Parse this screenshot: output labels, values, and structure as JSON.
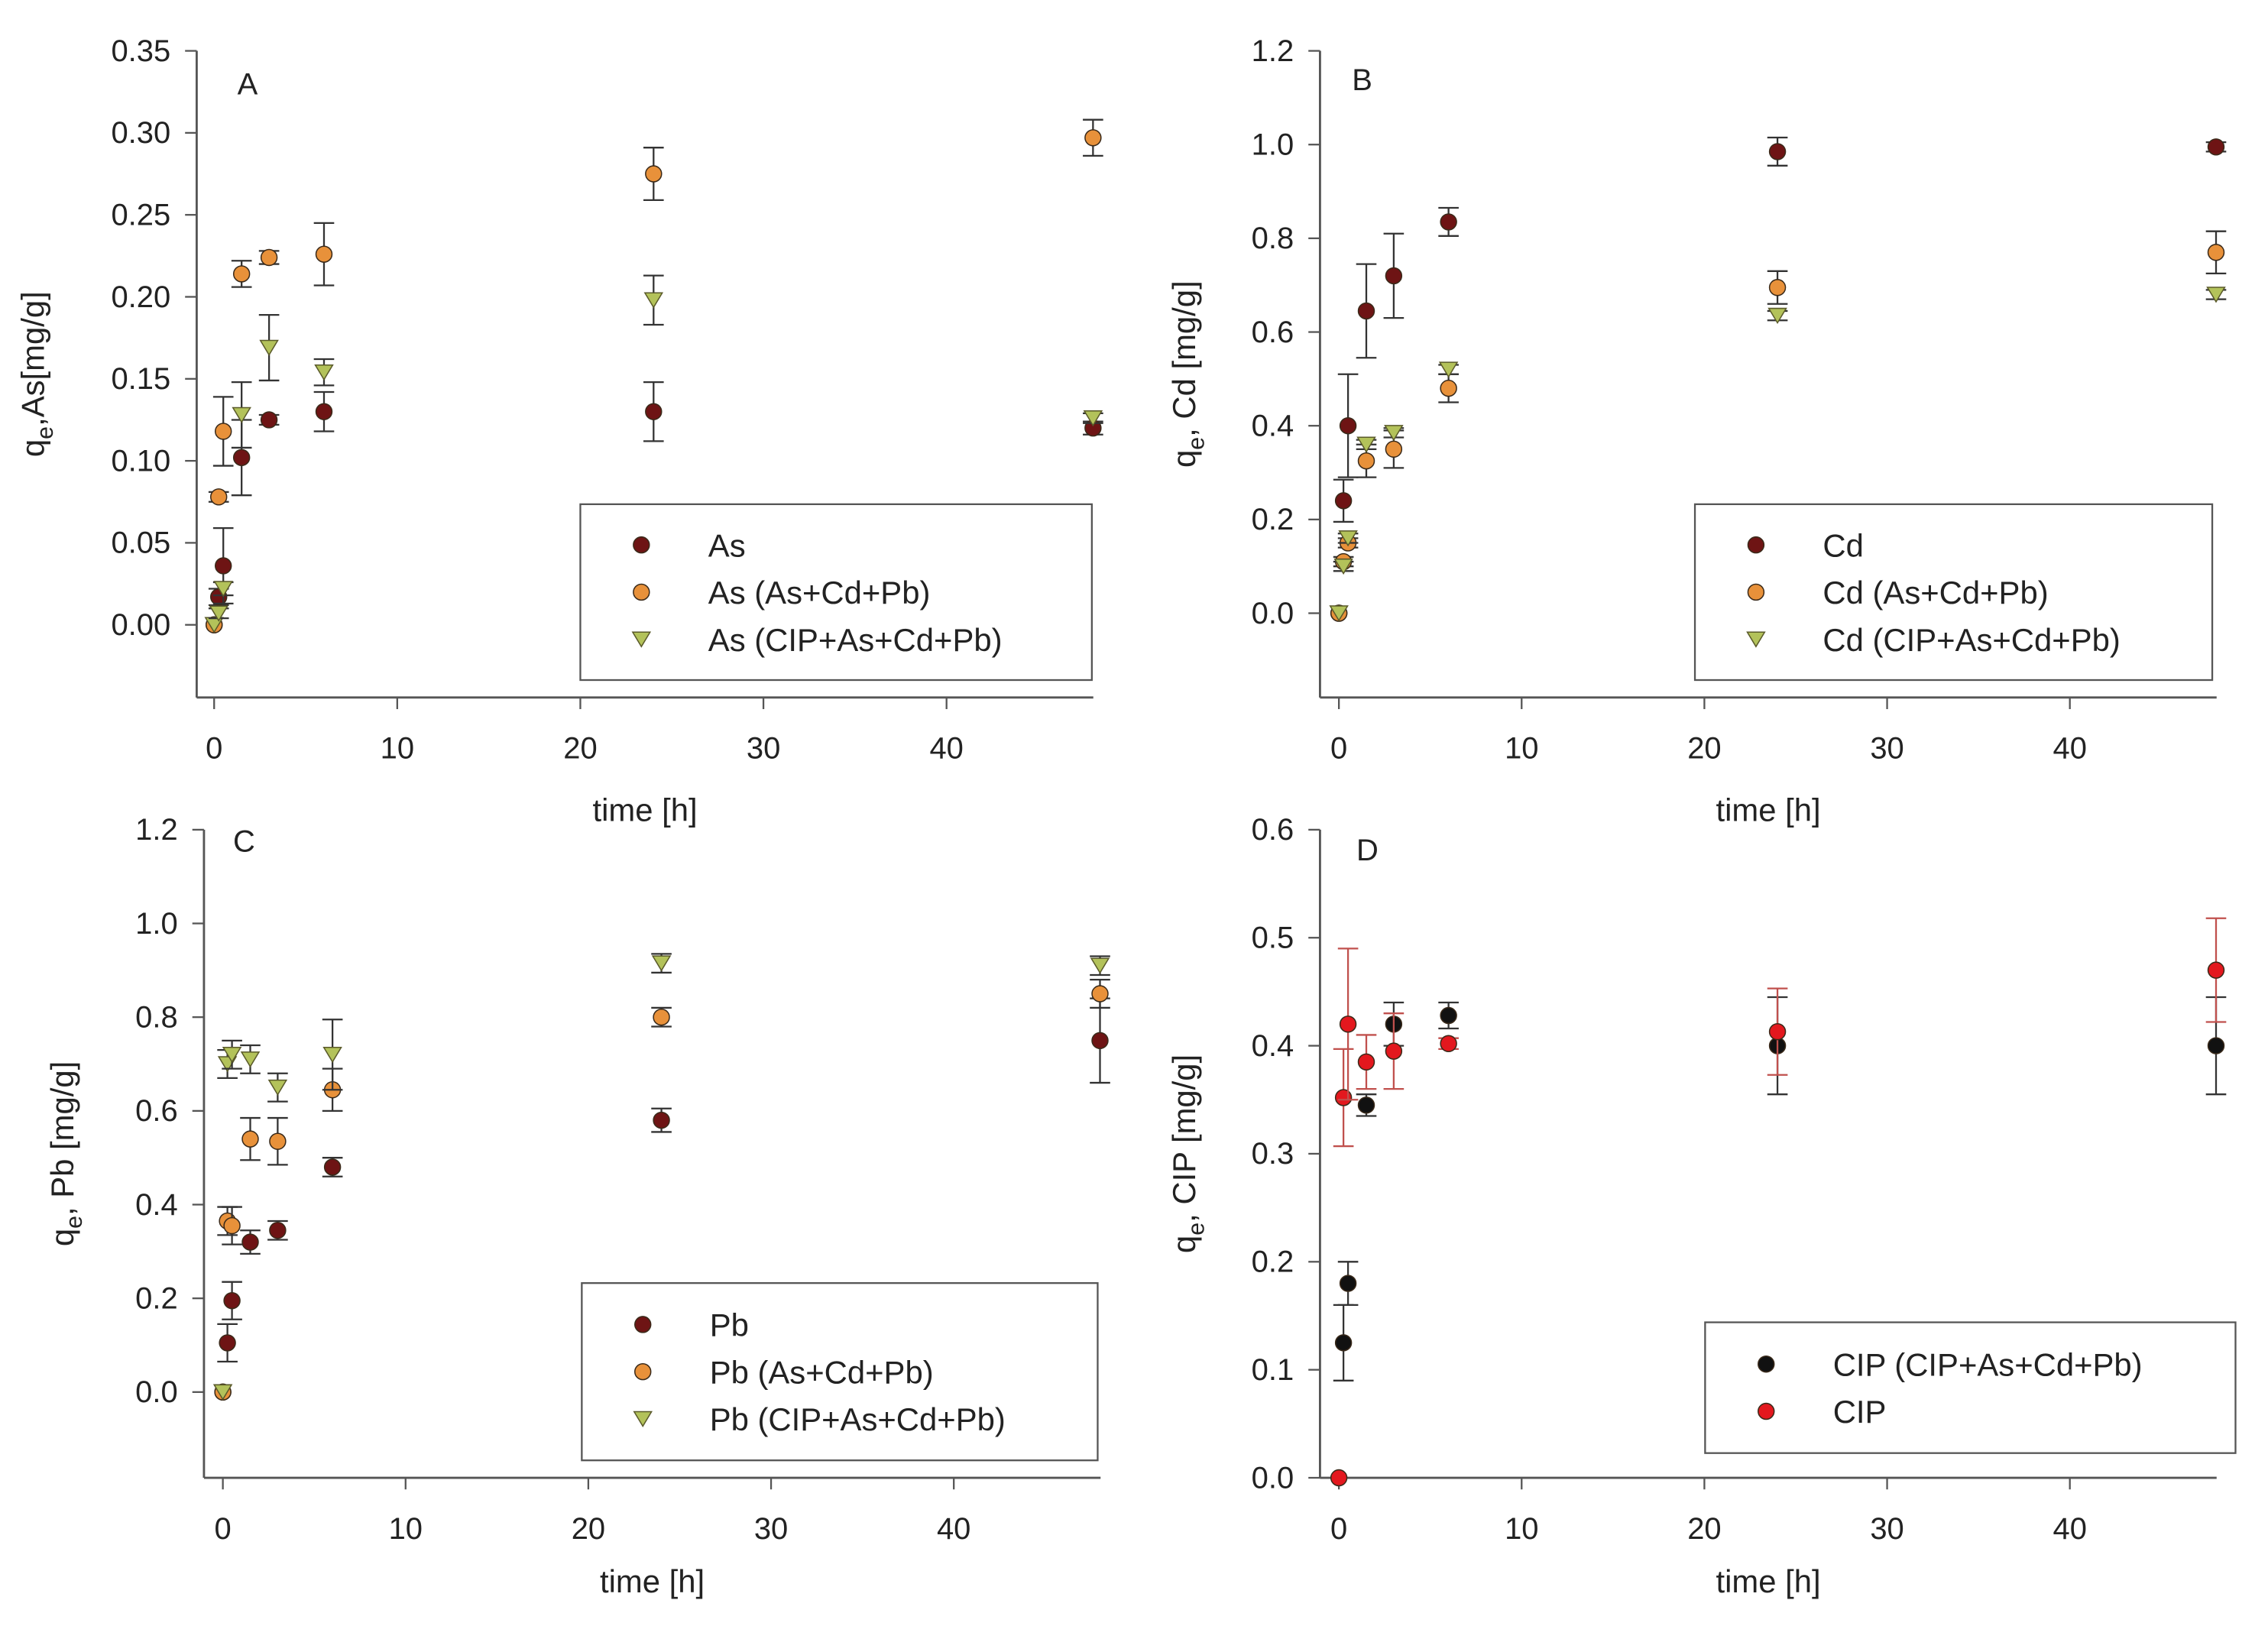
{
  "chart_data": [
    {
      "type": "scatter",
      "panel_label": "A",
      "xlabel": "time [h]",
      "ylabel_main": "q",
      "ylabel_sub": "e",
      "ylabel_rest": ",As[mg/g]",
      "xlim": [
        -1,
        48
      ],
      "ylim": [
        -0.045,
        0.35
      ],
      "xticks": [
        0,
        10,
        20,
        30,
        40
      ],
      "yticks": [
        0,
        0.05,
        0.1,
        0.15,
        0.2,
        0.25,
        0.3,
        0.35
      ],
      "ytick_decimals": 2,
      "legend_position": "bottom-right",
      "x": [
        0,
        0.25,
        0.5,
        1.5,
        3,
        6,
        24,
        48
      ],
      "series": [
        {
          "name": "As",
          "marker": "circle",
          "color": "#6e1414",
          "values": [
            0,
            0.017,
            0.036,
            0.102,
            0.125,
            0.13,
            0.13,
            0.12
          ],
          "errors": [
            0,
            0.005,
            0.023,
            0.023,
            0.003,
            0.012,
            0.018,
            0.004
          ]
        },
        {
          "name": "As (As+Cd+Pb)",
          "marker": "circle",
          "color": "#e8913a",
          "values": [
            0,
            0.078,
            0.118,
            0.214,
            0.224,
            0.226,
            0.275,
            0.297
          ],
          "errors": [
            0,
            0.003,
            0.021,
            0.008,
            0.004,
            0.019,
            0.016,
            0.011
          ]
        },
        {
          "name": "As (CIP+As+Cd+Pb)",
          "marker": "triangle-down",
          "color": "#b3c25a",
          "values": [
            0,
            0.007,
            0.022,
            0.128,
            0.169,
            0.154,
            0.198,
            0.126
          ],
          "errors": [
            0,
            0.003,
            0.004,
            0.02,
            0.02,
            0.008,
            0.015,
            0.003
          ]
        }
      ]
    },
    {
      "type": "scatter",
      "panel_label": "B",
      "xlabel": "time [h]",
      "ylabel_main": "q",
      "ylabel_sub": "e",
      "ylabel_rest": ", Cd [mg/g]",
      "xlim": [
        -1,
        48
      ],
      "ylim": [
        -0.18,
        1.2
      ],
      "xticks": [
        0,
        10,
        20,
        30,
        40
      ],
      "yticks": [
        0,
        0.2,
        0.4,
        0.6,
        0.8,
        1.0,
        1.2
      ],
      "ytick_decimals": 1,
      "legend_position": "bottom-right",
      "x": [
        0,
        0.25,
        0.5,
        1.5,
        3,
        6,
        24,
        48
      ],
      "series": [
        {
          "name": "Cd",
          "marker": "circle",
          "color": "#6e1414",
          "values": [
            0,
            0.24,
            0.4,
            0.645,
            0.72,
            0.835,
            0.985,
            0.995
          ],
          "errors": [
            0,
            0.045,
            0.11,
            0.1,
            0.09,
            0.03,
            0.03,
            0.01
          ]
        },
        {
          "name": "Cd (As+Cd+Pb)",
          "marker": "circle",
          "color": "#e8913a",
          "values": [
            0,
            0.11,
            0.15,
            0.325,
            0.35,
            0.48,
            0.695,
            0.77
          ],
          "errors": [
            0,
            0.01,
            0.01,
            0.035,
            0.04,
            0.03,
            0.035,
            0.045
          ]
        },
        {
          "name": "Cd (CIP+As+Cd+Pb)",
          "marker": "triangle-down",
          "color": "#b3c25a",
          "values": [
            0,
            0.1,
            0.16,
            0.36,
            0.385,
            0.52,
            0.635,
            0.68
          ],
          "errors": [
            0,
            0.01,
            0.01,
            0.01,
            0.01,
            0.01,
            0.01,
            0.01
          ]
        }
      ]
    },
    {
      "type": "scatter",
      "panel_label": "C",
      "xlabel": "time [h]",
      "ylabel_main": "q",
      "ylabel_sub": "e",
      "ylabel_rest": ", Pb [mg/g]",
      "xlim": [
        -1,
        48
      ],
      "ylim": [
        -0.18,
        1.2
      ],
      "xticks": [
        0,
        10,
        20,
        30,
        40
      ],
      "yticks": [
        0,
        0.2,
        0.4,
        0.6,
        0.8,
        1.0,
        1.2
      ],
      "ytick_decimals": 1,
      "legend_position": "bottom-right",
      "x": [
        0,
        0.25,
        0.5,
        1.5,
        3,
        6,
        24,
        48
      ],
      "series": [
        {
          "name": "Pb",
          "marker": "circle",
          "color": "#6e1414",
          "values": [
            0,
            0.105,
            0.195,
            0.32,
            0.345,
            0.48,
            0.58,
            0.75
          ],
          "errors": [
            0,
            0.04,
            0.04,
            0.025,
            0.02,
            0.02,
            0.025,
            0.09
          ]
        },
        {
          "name": "Pb (As+Cd+Pb)",
          "marker": "circle",
          "color": "#e8913a",
          "values": [
            0,
            0.365,
            0.355,
            0.54,
            0.535,
            0.645,
            0.8,
            0.85
          ],
          "errors": [
            0,
            0.03,
            0.04,
            0.045,
            0.05,
            0.045,
            0.02,
            0.03
          ]
        },
        {
          "name": "Pb (CIP+As+Cd+Pb)",
          "marker": "triangle-down",
          "color": "#b3c25a",
          "values": [
            0,
            0.7,
            0.72,
            0.71,
            0.65,
            0.72,
            0.915,
            0.91
          ],
          "errors": [
            0,
            0.03,
            0.03,
            0.03,
            0.03,
            0.075,
            0.02,
            0.02
          ]
        }
      ]
    },
    {
      "type": "scatter",
      "panel_label": "D",
      "xlabel": "time [h]",
      "ylabel_main": "q",
      "ylabel_sub": "e",
      "ylabel_rest": ", CIP [mg/g]",
      "xlim": [
        -1,
        48
      ],
      "ylim": [
        0,
        0.6
      ],
      "xticks": [
        0,
        10,
        20,
        30,
        40
      ],
      "yticks": [
        0,
        0.1,
        0.2,
        0.3,
        0.4,
        0.5,
        0.6
      ],
      "ytick_decimals": 1,
      "legend_position": "bottom-right",
      "x": [
        0,
        0.25,
        0.5,
        1.5,
        3,
        6,
        24,
        48
      ],
      "series": [
        {
          "name": "CIP (CIP+As+Cd+Pb)",
          "marker": "circle",
          "color": "#111111",
          "values": [
            null,
            0.125,
            0.18,
            0.345,
            0.42,
            0.428,
            0.4,
            0.4
          ],
          "errors": [
            0,
            0.035,
            0.02,
            0.01,
            0.02,
            0.012,
            0.045,
            0.045
          ]
        },
        {
          "name": "CIP",
          "marker": "circle",
          "color": "#e3181e",
          "values": [
            0,
            0.352,
            0.42,
            0.385,
            0.395,
            0.402,
            0.413,
            0.47
          ],
          "errors": [
            0,
            0.045,
            0.07,
            0.025,
            0.035,
            0.005,
            0.04,
            0.048
          ]
        }
      ]
    }
  ]
}
